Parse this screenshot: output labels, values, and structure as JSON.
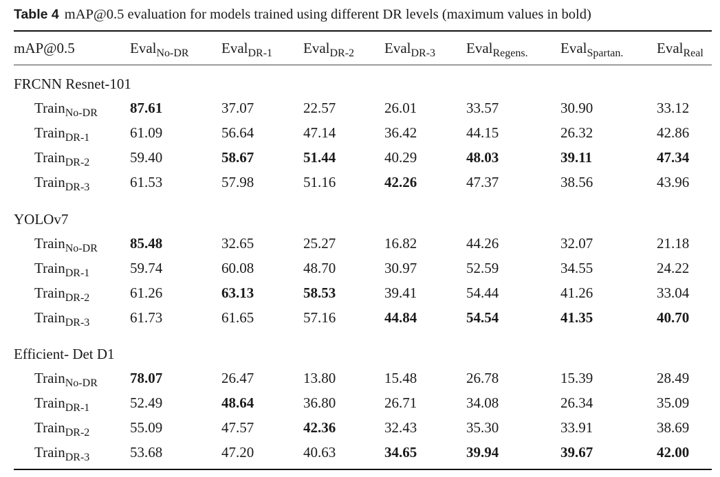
{
  "caption": {
    "label": "Table 4",
    "text": "mAP@0.5 evaluation for models trained using different DR levels (maximum values in bold)"
  },
  "header": {
    "first": "mAP@0.5",
    "cols": [
      {
        "base": "Eval",
        "sub": "No-DR"
      },
      {
        "base": "Eval",
        "sub": "DR-1"
      },
      {
        "base": "Eval",
        "sub": "DR-2"
      },
      {
        "base": "Eval",
        "sub": "DR-3"
      },
      {
        "base": "Eval",
        "sub": "Regens."
      },
      {
        "base": "Eval",
        "sub": "Spartan."
      },
      {
        "base": "Eval",
        "sub": "Real"
      }
    ]
  },
  "groups": [
    {
      "name": "FRCNN Resnet-101",
      "rows": [
        {
          "base": "Train",
          "sub": "No-DR",
          "values": [
            "87.61",
            "37.07",
            "22.57",
            "26.01",
            "33.57",
            "30.90",
            "33.12"
          ],
          "bold": [
            true,
            false,
            false,
            false,
            false,
            false,
            false
          ]
        },
        {
          "base": "Train",
          "sub": "DR-1",
          "values": [
            "61.09",
            "56.64",
            "47.14",
            "36.42",
            "44.15",
            "26.32",
            "42.86"
          ],
          "bold": [
            false,
            false,
            false,
            false,
            false,
            false,
            false
          ]
        },
        {
          "base": "Train",
          "sub": "DR-2",
          "values": [
            "59.40",
            "58.67",
            "51.44",
            "40.29",
            "48.03",
            "39.11",
            "47.34"
          ],
          "bold": [
            false,
            true,
            true,
            false,
            true,
            true,
            true
          ]
        },
        {
          "base": "Train",
          "sub": "DR-3",
          "values": [
            "61.53",
            "57.98",
            "51.16",
            "42.26",
            "47.37",
            "38.56",
            "43.96"
          ],
          "bold": [
            false,
            false,
            false,
            true,
            false,
            false,
            false
          ]
        }
      ]
    },
    {
      "name": "YOLOv7",
      "rows": [
        {
          "base": "Train",
          "sub": "No-DR",
          "values": [
            "85.48",
            "32.65",
            "25.27",
            "16.82",
            "44.26",
            "32.07",
            "21.18"
          ],
          "bold": [
            true,
            false,
            false,
            false,
            false,
            false,
            false
          ]
        },
        {
          "base": "Train",
          "sub": "DR-1",
          "values": [
            "59.74",
            "60.08",
            "48.70",
            "30.97",
            "52.59",
            "34.55",
            "24.22"
          ],
          "bold": [
            false,
            false,
            false,
            false,
            false,
            false,
            false
          ]
        },
        {
          "base": "Train",
          "sub": "DR-2",
          "values": [
            "61.26",
            "63.13",
            "58.53",
            "39.41",
            "54.44",
            "41.26",
            "33.04"
          ],
          "bold": [
            false,
            true,
            true,
            false,
            false,
            false,
            false
          ]
        },
        {
          "base": "Train",
          "sub": "DR-3",
          "values": [
            "61.73",
            "61.65",
            "57.16",
            "44.84",
            "54.54",
            "41.35",
            "40.70"
          ],
          "bold": [
            false,
            false,
            false,
            true,
            true,
            true,
            true
          ]
        }
      ]
    },
    {
      "name": "Efficient- Det D1",
      "rows": [
        {
          "base": "Train",
          "sub": "No-DR",
          "values": [
            "78.07",
            "26.47",
            "13.80",
            "15.48",
            "26.78",
            "15.39",
            "28.49"
          ],
          "bold": [
            true,
            false,
            false,
            false,
            false,
            false,
            false
          ]
        },
        {
          "base": "Train",
          "sub": "DR-1",
          "values": [
            "52.49",
            "48.64",
            "36.80",
            "26.71",
            "34.08",
            "26.34",
            "35.09"
          ],
          "bold": [
            false,
            true,
            false,
            false,
            false,
            false,
            false
          ]
        },
        {
          "base": "Train",
          "sub": "DR-2",
          "values": [
            "55.09",
            "47.57",
            "42.36",
            "32.43",
            "35.30",
            "33.91",
            "38.69"
          ],
          "bold": [
            false,
            false,
            true,
            false,
            false,
            false,
            false
          ]
        },
        {
          "base": "Train",
          "sub": "DR-3",
          "values": [
            "53.68",
            "47.20",
            "40.63",
            "34.65",
            "39.94",
            "39.67",
            "42.00"
          ],
          "bold": [
            false,
            false,
            false,
            true,
            true,
            true,
            true
          ]
        }
      ]
    }
  ]
}
